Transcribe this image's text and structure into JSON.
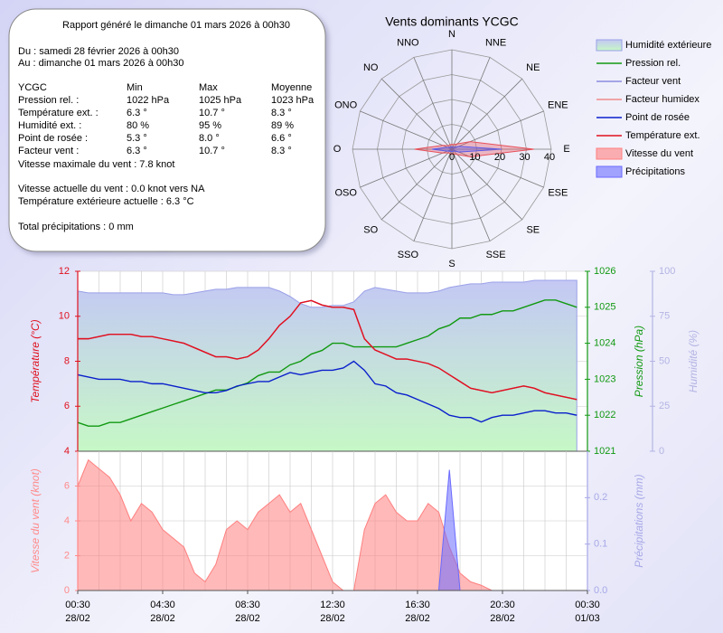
{
  "report": {
    "header": "Rapport généré le dimanche 01 mars 2026 à 00h30",
    "from": "Du : samedi 28 février 2026 à 00h30",
    "to": "Au : dimanche 01 mars 2026 à 00h30",
    "columns": [
      "YCGC",
      "Min",
      "Max",
      "Moyenne"
    ],
    "rows": [
      [
        "Pression rel. :",
        "1022 hPa",
        "1025 hPa",
        "1023 hPa"
      ],
      [
        "Température ext. :",
        "6.3 °",
        "10.7 °",
        "8.3 °"
      ],
      [
        "Humidité ext. :",
        "80 %",
        "95 %",
        "89 %"
      ],
      [
        "Point de rosée :",
        "5.3 °",
        "8.0 °",
        "6.6 °"
      ],
      [
        "Facteur vent :",
        "6.3 °",
        "10.7 °",
        "8.3 °"
      ]
    ],
    "max_wind": "Vitesse maximale du vent : 7.8 knot",
    "current_wind": "Vitesse actuelle du vent : 0.0 knot vers  NA",
    "current_temp": "Température extérieure actuelle :  6.3 °C",
    "rain_total": "Total précipitations :  0 mm"
  },
  "chart_data": [
    {
      "type": "radar",
      "title": "Vents dominants YCGC",
      "categories": [
        "N",
        "NNE",
        "NE",
        "ENE",
        "E",
        "ESE",
        "SE",
        "SSE",
        "S",
        "SSO",
        "SO",
        "OSO",
        "O",
        "ONO",
        "NO",
        "NNO"
      ],
      "rlim": [
        0,
        40
      ],
      "rticks": [
        0,
        10,
        20,
        30,
        40
      ],
      "series": [
        {
          "color": "#e8505a",
          "values": [
            2,
            2,
            3,
            8,
            33,
            8,
            3,
            2,
            2,
            2,
            2,
            4,
            15,
            4,
            2,
            2
          ]
        },
        {
          "color": "#5a5ae8",
          "values": [
            1,
            1,
            1,
            3,
            20,
            3,
            1,
            1,
            1,
            1,
            1,
            2,
            8,
            2,
            1,
            1
          ]
        }
      ]
    },
    {
      "type": "line",
      "ylabel": "Température (°C)",
      "y2label": "Pression (hPa)",
      "y3label": "Humidité (%)",
      "ylim": [
        4,
        12
      ],
      "yticks": [
        4,
        6,
        8,
        10,
        12
      ],
      "y2lim": [
        1021,
        1026
      ],
      "y2ticks": [
        1021,
        1022,
        1023,
        1024,
        1025,
        1026
      ],
      "y3lim": [
        0,
        100
      ],
      "y3ticks": [
        0,
        25,
        50,
        75,
        100
      ],
      "grid": true,
      "series": [
        {
          "name": "Humidité extérieure",
          "color": "#9aa0e8",
          "axis": "y3",
          "area": true,
          "values": [
            89,
            88,
            88,
            88,
            88,
            88,
            88,
            88,
            88,
            87,
            87,
            88,
            89,
            90,
            90,
            91,
            91,
            91,
            91,
            89,
            86,
            82,
            80,
            80,
            81,
            81,
            83,
            89,
            91,
            90,
            89,
            88,
            88,
            88,
            89,
            91,
            92,
            93,
            93,
            94,
            94,
            94,
            94,
            95,
            95,
            95,
            95,
            95,
            null
          ]
        },
        {
          "name": "Pression rel.",
          "color": "#119911",
          "axis": "y2",
          "values": [
            1021.8,
            1021.7,
            1021.7,
            1021.8,
            1021.8,
            1021.9,
            1022.0,
            1022.1,
            1022.2,
            1022.3,
            1022.4,
            1022.5,
            1022.6,
            1022.7,
            1022.7,
            1022.8,
            1022.9,
            1023.1,
            1023.2,
            1023.2,
            1023.4,
            1023.5,
            1023.7,
            1023.8,
            1024.0,
            1024.0,
            1023.9,
            1023.9,
            1023.9,
            1023.9,
            1023.9,
            1024.0,
            1024.1,
            1024.2,
            1024.4,
            1024.5,
            1024.7,
            1024.7,
            1024.8,
            1024.8,
            1024.9,
            1024.9,
            1025.0,
            1025.1,
            1025.2,
            1025.2,
            1025.1,
            1025.0,
            null
          ]
        },
        {
          "name": "Facteur vent",
          "color": "#8c8ce0",
          "values": [
            9.0,
            9.0,
            9.1,
            9.2,
            9.2,
            9.2,
            9.1,
            9.1,
            9.0,
            8.9,
            8.8,
            8.6,
            8.4,
            8.2,
            8.2,
            8.1,
            8.2,
            8.5,
            9.0,
            9.6,
            10.0,
            10.6,
            10.7,
            10.5,
            10.4,
            10.4,
            10.3,
            9.0,
            8.5,
            8.3,
            8.1,
            8.1,
            8.0,
            7.9,
            7.7,
            7.4,
            7.1,
            6.8,
            6.7,
            6.6,
            6.7,
            6.8,
            6.9,
            6.8,
            6.6,
            6.5,
            6.4,
            6.3,
            null
          ]
        },
        {
          "name": "Facteur humidex",
          "color": "#f08a8a",
          "values": [
            9.0,
            9.0,
            9.1,
            9.2,
            9.2,
            9.2,
            9.1,
            9.1,
            9.0,
            8.9,
            8.8,
            8.6,
            8.4,
            8.2,
            8.2,
            8.1,
            8.2,
            8.5,
            9.0,
            9.6,
            10.0,
            10.6,
            10.7,
            10.5,
            10.4,
            10.4,
            10.3,
            9.0,
            8.5,
            8.3,
            8.1,
            8.1,
            8.0,
            7.9,
            7.7,
            7.4,
            7.1,
            6.8,
            6.7,
            6.6,
            6.7,
            6.8,
            6.9,
            6.8,
            6.6,
            6.5,
            6.4,
            6.3,
            null
          ]
        },
        {
          "name": "Point de rosée",
          "color": "#0a1fcc",
          "values": [
            7.4,
            7.3,
            7.2,
            7.2,
            7.2,
            7.1,
            7.1,
            7.0,
            7.0,
            6.9,
            6.8,
            6.7,
            6.6,
            6.6,
            6.7,
            6.9,
            7.0,
            7.1,
            7.1,
            7.3,
            7.5,
            7.4,
            7.5,
            7.6,
            7.6,
            7.7,
            8.0,
            7.6,
            7.0,
            6.9,
            6.6,
            6.5,
            6.3,
            6.1,
            5.9,
            5.6,
            5.5,
            5.5,
            5.3,
            5.5,
            5.6,
            5.6,
            5.7,
            5.8,
            5.8,
            5.7,
            5.7,
            5.6,
            null
          ]
        },
        {
          "name": "Température ext.",
          "color": "#e0101e",
          "values": [
            9.0,
            9.0,
            9.1,
            9.2,
            9.2,
            9.2,
            9.1,
            9.1,
            9.0,
            8.9,
            8.8,
            8.6,
            8.4,
            8.2,
            8.2,
            8.1,
            8.2,
            8.5,
            9.0,
            9.6,
            10.0,
            10.6,
            10.7,
            10.5,
            10.4,
            10.4,
            10.3,
            9.0,
            8.5,
            8.3,
            8.1,
            8.1,
            8.0,
            7.9,
            7.7,
            7.4,
            7.1,
            6.8,
            6.7,
            6.6,
            6.7,
            6.8,
            6.9,
            6.8,
            6.6,
            6.5,
            6.4,
            6.3,
            null
          ]
        }
      ]
    },
    {
      "type": "area",
      "ylabel": "Vitesse du vent (knot)",
      "y2label": "Précipitations (mm)",
      "ylim": [
        0,
        8
      ],
      "yticks": [
        0,
        2,
        4,
        6
      ],
      "y2lim": [
        0,
        0.3
      ],
      "y2ticks": [
        {
          "value": 0,
          "label": "0.0"
        },
        0.1,
        0.2
      ],
      "grid": true,
      "categories": [
        {
          "time": "00:30",
          "date": "28/02"
        },
        null,
        null,
        null,
        null,
        null,
        null,
        null,
        {
          "time": "04:30",
          "date": "28/02"
        },
        null,
        null,
        null,
        null,
        null,
        null,
        null,
        {
          "time": "08:30",
          "date": "28/02"
        },
        null,
        null,
        null,
        null,
        null,
        null,
        null,
        {
          "time": "12:30",
          "date": "28/02"
        },
        null,
        null,
        null,
        null,
        null,
        null,
        null,
        {
          "time": "16:30",
          "date": "28/02"
        },
        null,
        null,
        null,
        null,
        null,
        null,
        null,
        {
          "time": "20:30",
          "date": "28/02"
        },
        null,
        null,
        null,
        null,
        null,
        null,
        null,
        {
          "time": "00:30",
          "date": "01/03"
        }
      ],
      "series": [
        {
          "name": "Vitesse du vent",
          "color": "#ff7f7f",
          "values": [
            6.0,
            7.5,
            7.0,
            6.5,
            5.5,
            4.0,
            5.0,
            4.5,
            3.5,
            3.0,
            2.5,
            1.0,
            0.5,
            1.5,
            3.5,
            4.0,
            3.5,
            4.5,
            5.0,
            5.5,
            4.5,
            5.0,
            3.5,
            2.0,
            0.5,
            0,
            0,
            3.5,
            5.0,
            5.5,
            4.5,
            4.0,
            4.0,
            5.0,
            4.5,
            2.5,
            1.0,
            0.5,
            0.3,
            0,
            0,
            0,
            0,
            0,
            0,
            0,
            0,
            0,
            null
          ]
        },
        {
          "name": "Précipitations",
          "color": "#6a6aff",
          "axis": "y2",
          "values": [
            0,
            0,
            0,
            0,
            0,
            0,
            0,
            0,
            0,
            0,
            0,
            0,
            0,
            0,
            0,
            0,
            0,
            0,
            0,
            0,
            0,
            0,
            0,
            0,
            0,
            0,
            0,
            0,
            0,
            0,
            0,
            0,
            0,
            0,
            0,
            0.26,
            0,
            0,
            0,
            0,
            0,
            0,
            0,
            0,
            0,
            0,
            0,
            0,
            null
          ]
        }
      ]
    }
  ]
}
